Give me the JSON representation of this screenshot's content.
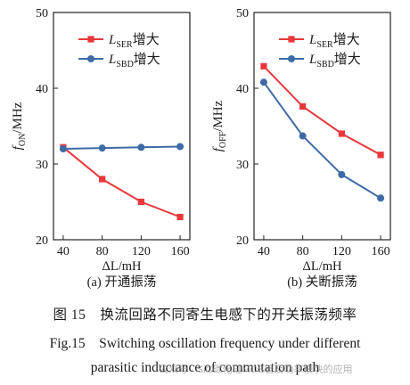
{
  "chart_data": [
    {
      "type": "line",
      "panel_label": "(a) 开通振荡",
      "ylabel_main": "f",
      "ylabel_sub": "ON",
      "ylabel_unit": "/MHz",
      "xlabel": "ΔL/mH",
      "x": [
        40,
        80,
        120,
        160
      ],
      "xticks": [
        "40",
        "80",
        "120",
        "160"
      ],
      "ylim": [
        20,
        50
      ],
      "yticks": [
        "20",
        "30",
        "40",
        "50"
      ],
      "legend_position": "top-right",
      "series": [
        {
          "name_main": "L",
          "name_sub": "SER",
          "name_suffix": "增大",
          "color": "#e8373b",
          "values": [
            32.2,
            28.0,
            25.0,
            23.0
          ]
        },
        {
          "name_main": "L",
          "name_sub": "SBD",
          "name_suffix": "增大",
          "color": "#3e6aa6",
          "values": [
            32.0,
            32.1,
            32.2,
            32.3
          ]
        }
      ]
    },
    {
      "type": "line",
      "panel_label": "(b) 关断振荡",
      "ylabel_main": "f",
      "ylabel_sub": "OFF",
      "ylabel_unit": "/MHz",
      "xlabel": "ΔL/mH",
      "x": [
        40,
        80,
        120,
        160
      ],
      "xticks": [
        "40",
        "80",
        "120",
        "160"
      ],
      "ylim": [
        20,
        50
      ],
      "yticks": [
        "20",
        "30",
        "40",
        "50"
      ],
      "legend_position": "top-right",
      "series": [
        {
          "name_main": "L",
          "name_sub": "SER",
          "name_suffix": "增大",
          "color": "#e8373b",
          "values": [
            42.9,
            37.6,
            34.0,
            31.2
          ]
        },
        {
          "name_main": "L",
          "name_sub": "SBD",
          "name_suffix": "增大",
          "color": "#3e6aa6",
          "values": [
            40.8,
            33.7,
            28.6,
            25.5
          ]
        }
      ]
    }
  ],
  "caption": {
    "cn": "图 15　换流回路不同寄生电感下的开关振荡频率",
    "en_line1": "Fig.15　Switching oscillation frequency under different",
    "en_line2": "parasitic inductance of commutation path"
  },
  "watermark": "公众号 · SiC碳化硅MOS管及功率模块的应用"
}
